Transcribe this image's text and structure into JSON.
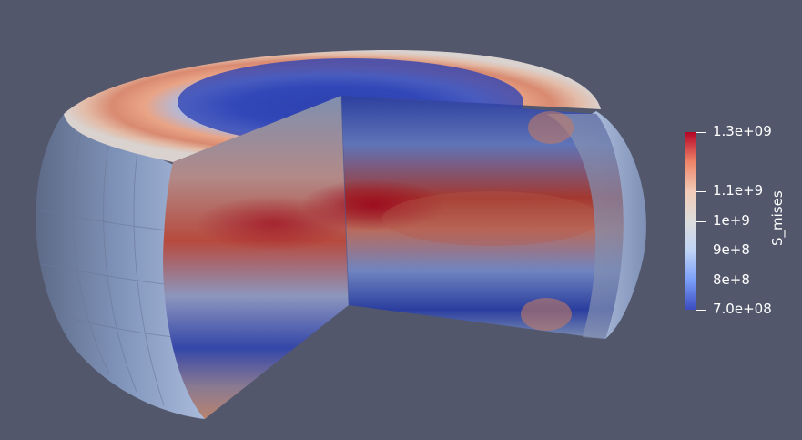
{
  "colorbar": {
    "title": "S_mises",
    "ticks": [
      {
        "label": "1.3e+09",
        "value": 1300000000.0
      },
      {
        "label": "1.1e+9",
        "value": 1100000000.0
      },
      {
        "label": "1e+9",
        "value": 1000000000.0
      },
      {
        "label": "9e+8",
        "value": 900000000.0
      },
      {
        "label": "8e+8",
        "value": 800000000.0
      },
      {
        "label": "7.0e+08",
        "value": 700000000.0
      }
    ],
    "range": [
      700000000.0,
      1300000000.0
    ],
    "colormap": [
      "#3b4cc0",
      "#7b9ff9",
      "#c0d4f5",
      "#dddcdc",
      "#f2cbb7",
      "#ee8468",
      "#b40426"
    ]
  },
  "colors": {
    "background": "#52576c"
  }
}
